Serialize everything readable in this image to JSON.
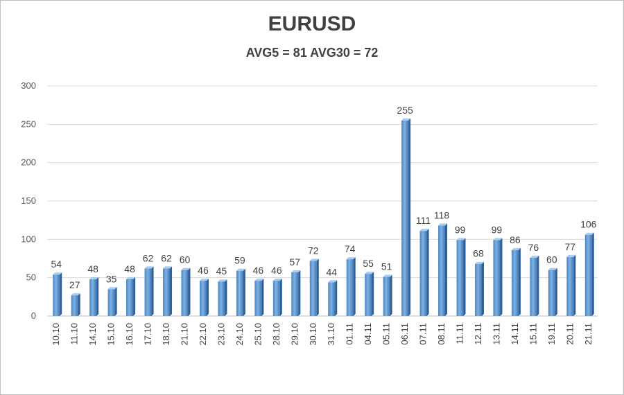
{
  "chart_data": {
    "type": "bar",
    "title": "EURUSD",
    "subtitle": "AVG5 = 81 AVG30 = 72",
    "xlabel": "",
    "ylabel": "",
    "ylim": [
      0,
      300
    ],
    "yticks": [
      0,
      50,
      100,
      150,
      200,
      250,
      300
    ],
    "grid": true,
    "legend": "none",
    "bar_color": "#5b9bd5",
    "categories": [
      "10.10",
      "11.10",
      "14.10",
      "15.10",
      "16.10",
      "17.10",
      "18.10",
      "21.10",
      "22.10",
      "23.10",
      "24.10",
      "25.10",
      "28.10",
      "29.10",
      "30.10",
      "31.10",
      "01.11",
      "04.11",
      "05.11",
      "06.11",
      "07.11",
      "08.11",
      "11.11",
      "12.11",
      "13.11",
      "14.11",
      "15.11",
      "19.11",
      "20.11",
      "21.11"
    ],
    "values": [
      54,
      27,
      48,
      35,
      48,
      62,
      62,
      60,
      46,
      45,
      59,
      46,
      46,
      57,
      72,
      44,
      74,
      55,
      51,
      255,
      111,
      118,
      99,
      68,
      99,
      86,
      76,
      60,
      77,
      106
    ]
  }
}
